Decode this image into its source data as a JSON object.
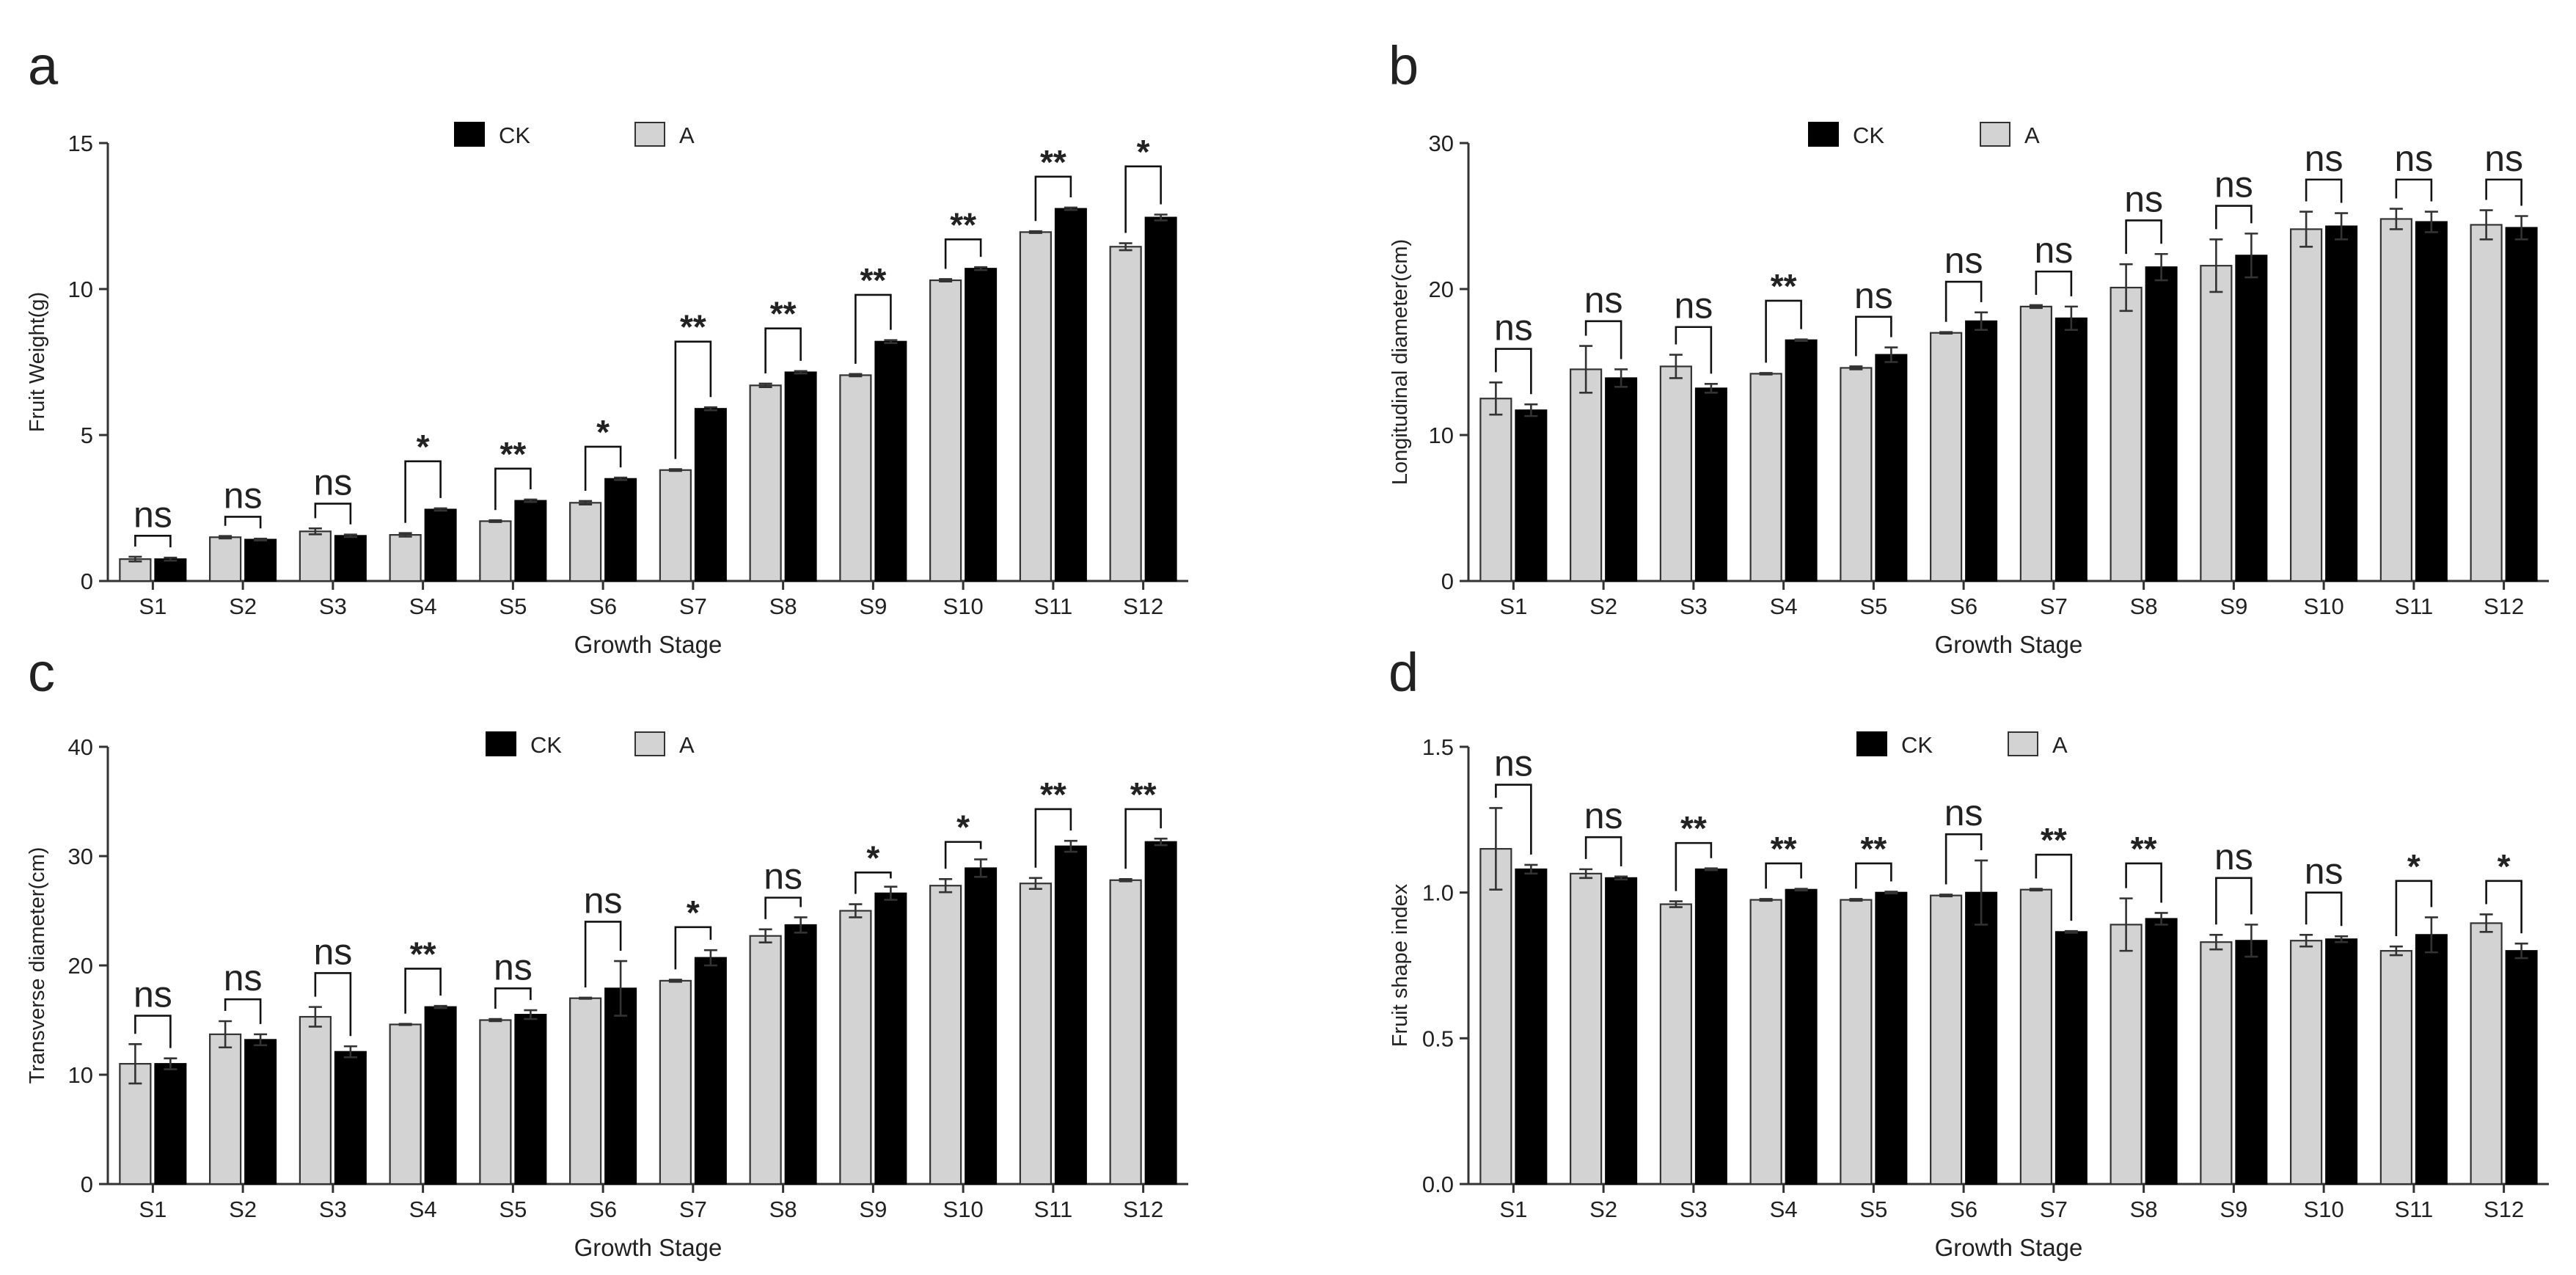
{
  "chart_data": [
    {
      "type": "bar",
      "panel_label": "a",
      "title": "",
      "xlabel": "Growth Stage",
      "ylabel": "Fruit Weight(g)",
      "ylim": [
        0,
        15
      ],
      "yticks": [
        0,
        5,
        10,
        15
      ],
      "legend": {
        "placement": "top-center",
        "order": [
          "CK",
          "A"
        ]
      },
      "categories": [
        "S1",
        "S2",
        "S3",
        "S4",
        "S5",
        "S6",
        "S7",
        "S8",
        "S9",
        "S10",
        "S11",
        "S12"
      ],
      "series": [
        {
          "name": "A",
          "color": "#d3d3d3",
          "values": [
            0.75,
            1.5,
            1.7,
            1.58,
            2.05,
            2.68,
            3.8,
            6.7,
            7.05,
            10.3,
            11.95,
            11.45
          ],
          "errors": [
            0.08,
            0.04,
            0.1,
            0.06,
            0.03,
            0.06,
            0.03,
            0.06,
            0.04,
            0.04,
            0.03,
            0.12
          ]
        },
        {
          "name": "CK",
          "color": "#000000",
          "values": [
            0.75,
            1.42,
            1.55,
            2.45,
            2.75,
            3.5,
            5.9,
            7.15,
            8.2,
            10.7,
            12.75,
            12.45
          ],
          "errors": [
            0.05,
            0.03,
            0.04,
            0.04,
            0.04,
            0.04,
            0.05,
            0.04,
            0.05,
            0.05,
            0.04,
            0.1
          ]
        }
      ],
      "significance": [
        "ns",
        "ns",
        "ns",
        "*",
        "**",
        "*",
        "**",
        "**",
        "**",
        "**",
        "**",
        "*"
      ],
      "_bracket_levels": [
        1.55,
        2.2,
        2.65,
        4.1,
        3.85,
        4.6,
        8.2,
        8.65,
        9.8,
        11.7,
        13.85,
        14.2
      ]
    },
    {
      "type": "bar",
      "panel_label": "b",
      "title": "",
      "xlabel": "Growth Stage",
      "ylabel": "Longitudinal diameter(cm)",
      "ylim": [
        0,
        30
      ],
      "yticks": [
        0,
        10,
        20,
        30
      ],
      "legend": {
        "placement": "top-center",
        "order": [
          "CK",
          "A"
        ]
      },
      "categories": [
        "S1",
        "S2",
        "S3",
        "S4",
        "S5",
        "S6",
        "S7",
        "S8",
        "S9",
        "S10",
        "S11",
        "S12"
      ],
      "series": [
        {
          "name": "A",
          "color": "#d3d3d3",
          "values": [
            12.5,
            14.5,
            14.7,
            14.2,
            14.6,
            17.0,
            18.8,
            20.1,
            21.6,
            24.1,
            24.8,
            24.4
          ],
          "errors": [
            1.1,
            1.6,
            0.8,
            0.05,
            0.1,
            0.05,
            0.1,
            1.6,
            1.8,
            1.2,
            0.7,
            1.0
          ]
        },
        {
          "name": "CK",
          "color": "#000000",
          "values": [
            11.7,
            13.9,
            13.2,
            16.5,
            15.5,
            17.8,
            18.0,
            21.5,
            22.3,
            24.3,
            24.6,
            24.2
          ],
          "errors": [
            0.4,
            0.6,
            0.3,
            0.05,
            0.5,
            0.6,
            0.8,
            0.9,
            1.5,
            0.9,
            0.7,
            0.8
          ]
        }
      ],
      "significance": [
        "ns",
        "ns",
        "ns",
        "**",
        "ns",
        "ns",
        "ns",
        "ns",
        "ns",
        "ns",
        "ns",
        "ns"
      ],
      "_bracket_levels": [
        15.9,
        17.8,
        17.4,
        19.2,
        18.1,
        20.5,
        21.2,
        24.7,
        25.7,
        27.5,
        27.5,
        27.5
      ]
    },
    {
      "type": "bar",
      "panel_label": "c",
      "title": "",
      "xlabel": "Growth Stage",
      "ylabel": "Transverse diameter(cm)",
      "ylim": [
        0,
        40
      ],
      "yticks": [
        0,
        10,
        20,
        30,
        40
      ],
      "legend": {
        "placement": "top-center",
        "order": [
          "CK",
          "A"
        ]
      },
      "categories": [
        "S1",
        "S2",
        "S3",
        "S4",
        "S5",
        "S6",
        "S7",
        "S8",
        "S9",
        "S10",
        "S11",
        "S12"
      ],
      "series": [
        {
          "name": "A",
          "color": "#d3d3d3",
          "values": [
            11.0,
            13.7,
            15.3,
            14.6,
            15.0,
            17.0,
            18.6,
            22.7,
            25.0,
            27.3,
            27.5,
            27.8
          ],
          "errors": [
            1.8,
            1.2,
            0.9,
            0.05,
            0.1,
            0.05,
            0.1,
            0.6,
            0.6,
            0.6,
            0.5,
            0.1
          ]
        },
        {
          "name": "CK",
          "color": "#000000",
          "values": [
            11.0,
            13.2,
            12.1,
            16.2,
            15.5,
            17.9,
            20.7,
            23.7,
            26.6,
            28.9,
            30.9,
            31.3
          ],
          "errors": [
            0.5,
            0.5,
            0.5,
            0.1,
            0.4,
            2.5,
            0.7,
            0.7,
            0.6,
            0.8,
            0.5,
            0.3
          ]
        }
      ],
      "significance": [
        "ns",
        "ns",
        "ns",
        "**",
        "ns",
        "ns",
        "*",
        "ns",
        "*",
        "*",
        "**",
        "**"
      ],
      "_bracket_levels": [
        15.4,
        16.9,
        19.3,
        19.7,
        17.9,
        24.0,
        23.5,
        26.2,
        28.5,
        31.3,
        34.3,
        34.3
      ]
    },
    {
      "type": "bar",
      "panel_label": "d",
      "title": "",
      "xlabel": "Growth Stage",
      "ylabel": "Fruit shape index",
      "ylim": [
        0,
        1.5
      ],
      "yticks": [
        0.0,
        0.5,
        1.0,
        1.5
      ],
      "legend": {
        "placement": "top-center",
        "order": [
          "CK",
          "A"
        ]
      },
      "categories": [
        "S1",
        "S2",
        "S3",
        "S4",
        "S5",
        "S6",
        "S7",
        "S8",
        "S9",
        "S10",
        "S11",
        "S12"
      ],
      "series": [
        {
          "name": "A",
          "color": "#d3d3d3",
          "values": [
            1.15,
            1.065,
            0.96,
            0.975,
            0.975,
            0.99,
            1.01,
            0.89,
            0.83,
            0.835,
            0.8,
            0.895
          ],
          "errors": [
            0.14,
            0.015,
            0.01,
            0.003,
            0.003,
            0.003,
            0.003,
            0.09,
            0.025,
            0.02,
            0.015,
            0.03
          ]
        },
        {
          "name": "CK",
          "color": "#000000",
          "values": [
            1.08,
            1.05,
            1.08,
            1.01,
            1.0,
            1.0,
            0.865,
            0.91,
            0.835,
            0.84,
            0.855,
            0.8
          ],
          "errors": [
            0.015,
            0.005,
            0.003,
            0.003,
            0.003,
            0.11,
            0.003,
            0.02,
            0.055,
            0.01,
            0.06,
            0.025
          ]
        }
      ],
      "significance": [
        "ns",
        "ns",
        "**",
        "**",
        "**",
        "ns",
        "**",
        "**",
        "ns",
        "ns",
        "*",
        "*"
      ],
      "_bracket_levels": [
        1.37,
        1.19,
        1.17,
        1.1,
        1.1,
        1.2,
        1.13,
        1.1,
        1.05,
        1.0,
        1.04,
        1.04
      ]
    }
  ]
}
